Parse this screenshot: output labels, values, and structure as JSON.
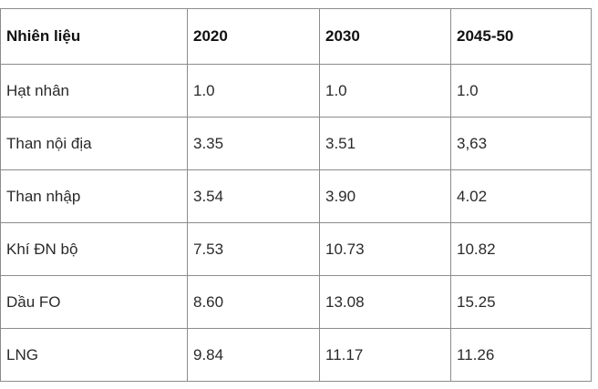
{
  "table": {
    "headers": [
      "Nhiên liệu",
      "2020",
      "2030",
      "2045-50"
    ],
    "rows": [
      [
        "Hạt nhân",
        "1.0",
        "1.0",
        "1.0"
      ],
      [
        "Than nội địa",
        "3.35",
        "3.51",
        "3,63"
      ],
      [
        "Than nhập",
        "3.54",
        "3.90",
        "4.02"
      ],
      [
        "Khí ĐN bộ",
        "7.53",
        "10.73",
        "10.82"
      ],
      [
        "Dầu FO",
        "8.60",
        "13.08",
        "15.25"
      ],
      [
        "LNG",
        "9.84",
        "11.17",
        "11.26"
      ]
    ]
  },
  "colors": {
    "border": "#8c8c8c",
    "text": "#1a1a1a",
    "background": "#ffffff"
  }
}
